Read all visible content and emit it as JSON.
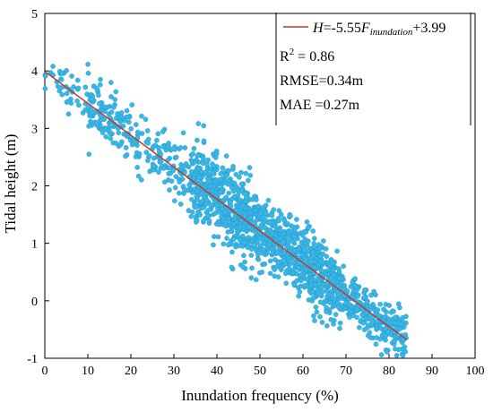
{
  "chart_data": {
    "type": "scatter",
    "xlabel": "Inundation frequency (%)",
    "ylabel": "Tidal height (m)",
    "xlim": [
      0,
      100
    ],
    "ylim": [
      -1,
      5
    ],
    "x_ticks": [
      0,
      10,
      20,
      30,
      40,
      50,
      60,
      70,
      80,
      90,
      100
    ],
    "y_ticks": [
      -1,
      0,
      1,
      2,
      3,
      4,
      5
    ],
    "grid": false,
    "colors": {
      "points": "#39b7e6",
      "point_edge": "#1f8fc4",
      "fit_line": "#c0392b"
    },
    "fit_line": {
      "slope": -0.0555,
      "intercept": 3.99,
      "x_range": [
        0,
        84
      ]
    },
    "legend": {
      "placement": "top-right",
      "eq_prefix": "H",
      "eq_middle": "=-5.55",
      "eq_var": "F",
      "eq_sub": "inundation",
      "eq_suffix": "+3.99",
      "r2_main": "R",
      "r2_sup": "2",
      "r2_value": " = 0.86",
      "rmse": "RMSE=0.34m",
      "mae": "MAE =0.27m"
    },
    "scatter_clusters": [
      {
        "x": [
          0,
          16
        ],
        "n": 70,
        "sd": 0.18
      },
      {
        "x": [
          10,
          34
        ],
        "n": 220,
        "sd": 0.25
      },
      {
        "x": [
          34,
          50
        ],
        "n": 520,
        "sd": 0.35
      },
      {
        "x": [
          50,
          68
        ],
        "n": 560,
        "sd": 0.3
      },
      {
        "x": [
          68,
          84
        ],
        "n": 300,
        "sd": 0.2
      }
    ]
  }
}
